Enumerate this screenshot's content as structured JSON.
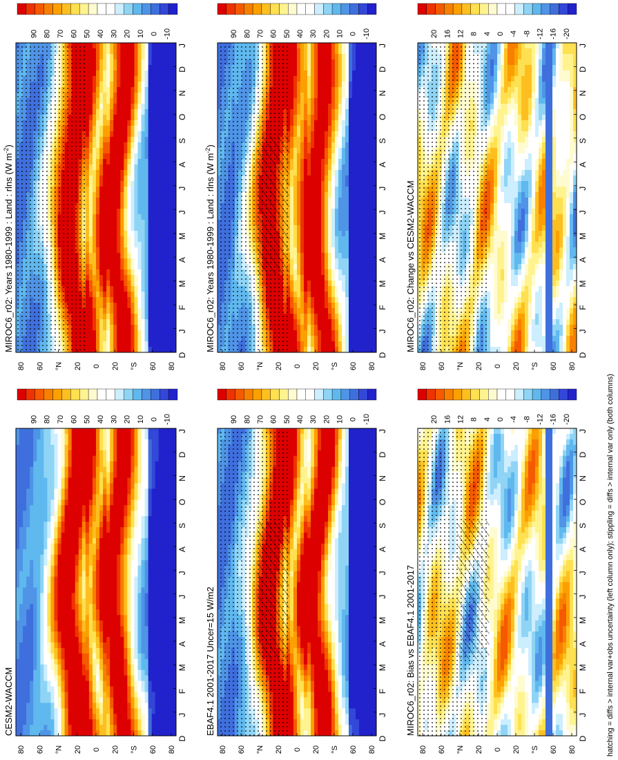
{
  "footnote": "hatching = diffs > internal var+obs uncertainty (left column only); stippling = diffs > internal var only (both columns)",
  "colors": {
    "abs_scale": [
      "#dd0000",
      "#ee3300",
      "#f55a00",
      "#f88000",
      "#fba000",
      "#fdbf20",
      "#fee050",
      "#fff390",
      "#fffbd0",
      "#ffffff",
      "#ffffff",
      "#cceeff",
      "#8fd4f5",
      "#5fb8ee",
      "#4f94e6",
      "#3f6fdd",
      "#3347d8",
      "#2222cc"
    ],
    "diff_scale": [
      "#dd0000",
      "#ee3300",
      "#f55a00",
      "#f88000",
      "#fba000",
      "#fdbf20",
      "#fee050",
      "#fff390",
      "#fffbd0",
      "#ffffff",
      "#ffffff",
      "#cceeff",
      "#8fd4f5",
      "#5fb8ee",
      "#4f94e6",
      "#3f6fdd",
      "#3347d8",
      "#2222cc"
    ]
  },
  "chart_data": [
    {
      "id": "panel-model-left",
      "type": "heatmap",
      "title": "MIROC6_r02: Years 1980-1999 : Land : rlns (W m",
      "title_unit_sup": "-2",
      "title_close": ")",
      "x_ticks": [
        "D",
        "J",
        "F",
        "M",
        "A",
        "M",
        "J",
        "J",
        "A",
        "S",
        "O",
        "N",
        "D",
        "J"
      ],
      "y_ticks": [
        "80",
        "60",
        "°N",
        "20",
        "0",
        "20",
        "°S",
        "60",
        "80"
      ],
      "ylim": [
        -90,
        90
      ],
      "colorbar_labels": [
        "90",
        "80",
        "70",
        "60",
        "50",
        "40",
        "30",
        "20",
        "10",
        "0",
        "-10"
      ],
      "scale": "abs",
      "hatching": true,
      "stippling": true
    },
    {
      "id": "panel-model-right",
      "type": "heatmap",
      "title": "MIROC6_r02: Years 1980-1999 : Land : rlns (W m",
      "title_unit_sup": "-2",
      "title_close": ")",
      "x_ticks": [
        "D",
        "J",
        "F",
        "M",
        "A",
        "M",
        "J",
        "J",
        "A",
        "S",
        "O",
        "N",
        "D",
        "J"
      ],
      "y_ticks": [
        "80",
        "60",
        "°N",
        "20",
        "0",
        "20",
        "°S",
        "60",
        "80"
      ],
      "ylim": [
        -90,
        90
      ],
      "colorbar_labels": [
        "90",
        "80",
        "70",
        "60",
        "50",
        "40",
        "30",
        "20",
        "10",
        "0",
        "-10"
      ],
      "scale": "abs",
      "hatching": false,
      "stippling": true
    },
    {
      "id": "panel-obs",
      "type": "heatmap",
      "title": "EBAF4.1 2001-2017 Uncer=15 W/m2",
      "x_ticks": [
        "D",
        "J",
        "F",
        "M",
        "A",
        "M",
        "J",
        "J",
        "A",
        "S",
        "O",
        "N",
        "D",
        "J"
      ],
      "y_ticks": [
        "80",
        "60",
        "°N",
        "20",
        "0",
        "20",
        "°S",
        "60",
        "80"
      ],
      "ylim": [
        -90,
        90
      ],
      "colorbar_labels": [
        "90",
        "80",
        "70",
        "60",
        "50",
        "40",
        "30",
        "20",
        "10",
        "0",
        "-10"
      ],
      "scale": "abs",
      "hatching": true,
      "stippling": true
    },
    {
      "id": "panel-ref-model",
      "type": "heatmap",
      "title": "CESM2-WACCM",
      "x_ticks": [
        "D",
        "J",
        "F",
        "M",
        "A",
        "M",
        "J",
        "J",
        "A",
        "S",
        "O",
        "N",
        "D",
        "J"
      ],
      "y_ticks": [
        "80",
        "60",
        "°N",
        "20",
        "0",
        "20",
        "°S",
        "60",
        "80"
      ],
      "ylim": [
        -90,
        90
      ],
      "colorbar_labels": [
        "90",
        "80",
        "70",
        "60",
        "50",
        "40",
        "30",
        "20",
        "10",
        "0",
        "-10"
      ],
      "scale": "abs",
      "hatching": false,
      "stippling": false
    },
    {
      "id": "panel-bias",
      "type": "heatmap",
      "title": "MIROC6_r02: Bias vs EBAF4.1 2001-2017",
      "x_ticks": [
        "D",
        "J",
        "F",
        "M",
        "A",
        "M",
        "J",
        "J",
        "A",
        "S",
        "O",
        "N",
        "D",
        "J"
      ],
      "y_ticks": [
        "80",
        "60",
        "°N",
        "20",
        "0",
        "20",
        "°S",
        "60",
        "80"
      ],
      "ylim": [
        -90,
        90
      ],
      "colorbar_labels": [
        "20",
        "16",
        "12",
        "8",
        "4",
        "0",
        "-4",
        "-8",
        "-12",
        "-16",
        "-20"
      ],
      "scale": "diff",
      "hatching": true,
      "stippling": true
    },
    {
      "id": "panel-change",
      "type": "heatmap",
      "title": "MIROC6_r02: Change vs CESM2-WACCM",
      "x_ticks": [
        "D",
        "J",
        "F",
        "M",
        "A",
        "M",
        "J",
        "J",
        "A",
        "S",
        "O",
        "N",
        "D",
        "J"
      ],
      "y_ticks": [
        "80",
        "60",
        "°N",
        "20",
        "0",
        "20",
        "°S",
        "60",
        "80"
      ],
      "ylim": [
        -90,
        90
      ],
      "colorbar_labels": [
        "20",
        "16",
        "12",
        "8",
        "4",
        "0",
        "-4",
        "-8",
        "-12",
        "-16",
        "-20"
      ],
      "scale": "diff",
      "hatching": false,
      "stippling": true
    }
  ]
}
